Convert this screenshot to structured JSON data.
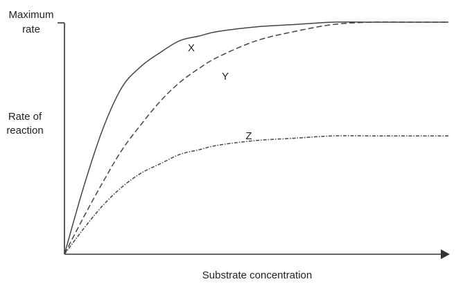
{
  "chart_data": {
    "type": "line",
    "title": "",
    "xlabel": "Substrate concentration",
    "ylabel": [
      "Rate of",
      "reaction"
    ],
    "ymax_label": [
      "Maximum",
      "rate"
    ],
    "x_range": [
      0,
      10
    ],
    "y_range": [
      0,
      1
    ],
    "grid": false,
    "legend": "none",
    "curve_color": "#444444",
    "series": [
      {
        "name": "X",
        "style": "solid",
        "x": [
          0,
          0.5,
          1,
          1.5,
          2,
          2.5,
          3,
          3.5,
          4,
          5,
          6,
          7,
          8,
          9,
          10
        ],
        "y": [
          0,
          0.29,
          0.54,
          0.72,
          0.81,
          0.87,
          0.92,
          0.94,
          0.96,
          0.98,
          0.99,
          1.0,
          1.0,
          1.0,
          1.0
        ]
      },
      {
        "name": "Y",
        "style": "dashed",
        "x": [
          0,
          0.5,
          1,
          1.5,
          2,
          2.5,
          3,
          3.5,
          4,
          5,
          6,
          7,
          8,
          9,
          10
        ],
        "y": [
          0,
          0.16,
          0.31,
          0.45,
          0.56,
          0.66,
          0.74,
          0.8,
          0.85,
          0.92,
          0.96,
          0.99,
          1.0,
          1.0,
          1.0
        ]
      },
      {
        "name": "Z",
        "style": "dash-dot",
        "x": [
          0,
          0.5,
          1,
          1.5,
          2,
          2.5,
          3,
          3.5,
          4,
          5,
          6,
          7,
          8,
          9,
          10
        ],
        "y": [
          0,
          0.11,
          0.21,
          0.29,
          0.35,
          0.39,
          0.43,
          0.45,
          0.47,
          0.49,
          0.5,
          0.51,
          0.51,
          0.51,
          0.51
        ]
      }
    ]
  }
}
